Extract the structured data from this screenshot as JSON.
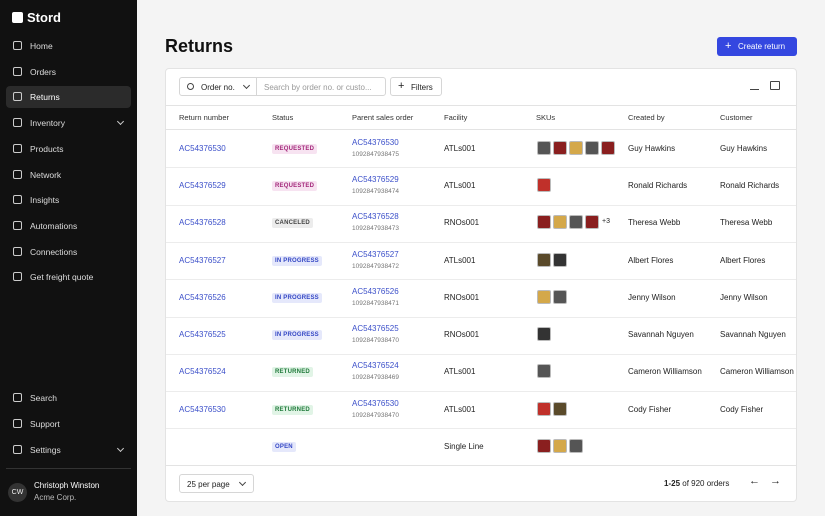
{
  "sidebar": {
    "brand": "Stord",
    "nav": [
      "Home",
      "Orders",
      "Returns",
      "Inventory",
      "Products",
      "Network",
      "Insights",
      "Automations",
      "Connections",
      "Get freight quote"
    ],
    "bottom_nav": [
      "Search",
      "Support",
      "Settings"
    ],
    "user": {
      "initials": "CW",
      "name": "Christoph Winston",
      "company": "Acme Corp."
    }
  },
  "header": {
    "title": "Returns",
    "action": "Create return"
  },
  "toolbar": {
    "filter_field": "Order no.",
    "search_placeholder": "Search by order no. or custo...",
    "filters": "Filters"
  },
  "table": {
    "columns": [
      "Return number",
      "Status",
      "Parent sales order",
      "Facility",
      "SKUs",
      "Created by",
      "Customer"
    ],
    "rows": [
      {
        "return_number": "AC54376530",
        "status": "REQUESTED",
        "status_color": "#a3277a",
        "status_bg": "#f7e3f1",
        "parent_order": "AC54376530",
        "parent_id": "1092847938475",
        "facility": "ATLs001",
        "created_by": "Guy Hawkins",
        "customer": "Guy Hawkins"
      },
      {
        "return_number": "AC54376529",
        "status": "REQUESTED",
        "status_color": "#a3277a",
        "status_bg": "#f7e3f1",
        "parent_order": "AC54376529",
        "parent_id": "1092847938474",
        "facility": "ATLs001",
        "created_by": "Ronald Richards",
        "customer": "Ronald Richards"
      },
      {
        "return_number": "AC54376528",
        "status": "CANCELED",
        "status_color": "#444444",
        "status_bg": "#ececec",
        "parent_order": "AC54376528",
        "parent_id": "1092847938473",
        "facility": "RNOs001",
        "more_skus": "+3",
        "created_by": "Theresa Webb",
        "customer": "Theresa Webb"
      },
      {
        "return_number": "AC54376527",
        "status": "IN PROGRESS",
        "status_color": "#3346c4",
        "status_bg": "#e5e8fb",
        "parent_order": "AC54376527",
        "parent_id": "1092847938472",
        "facility": "ATLs001",
        "created_by": "Albert Flores",
        "customer": "Albert Flores"
      },
      {
        "return_number": "AC54376526",
        "status": "IN PROGRESS",
        "status_color": "#3346c4",
        "status_bg": "#e5e8fb",
        "parent_order": "AC54376526",
        "parent_id": "1092847938471",
        "facility": "RNOs001",
        "created_by": "Jenny Wilson",
        "customer": "Jenny Wilson"
      },
      {
        "return_number": "AC54376525",
        "status": "IN PROGRESS",
        "status_color": "#3346c4",
        "status_bg": "#e5e8fb",
        "parent_order": "AC54376525",
        "parent_id": "1092847938470",
        "facility": "RNOs001",
        "created_by": "Savannah Nguyen",
        "customer": "Savannah Nguyen"
      },
      {
        "return_number": "AC54376524",
        "status": "RETURNED",
        "status_color": "#1f7a3a",
        "status_bg": "#e1f4e6",
        "parent_order": "AC54376524",
        "parent_id": "1092847938469",
        "facility": "ATLs001",
        "created_by": "Cameron Williamson",
        "customer": "Cameron Williamson"
      },
      {
        "return_number": "AC54376530",
        "status": "RETURNED",
        "status_color": "#1f7a3a",
        "status_bg": "#e1f4e6",
        "parent_order": "AC54376530",
        "parent_id": "1092847938470",
        "facility": "ATLs001",
        "created_by": "Cody Fisher",
        "customer": "Cody Fisher"
      },
      {
        "return_number": null,
        "status": "OPEN",
        "status_color": "#3346c4",
        "status_bg": "#e5e8fb",
        "parent_order": null,
        "parent_id": null,
        "facility": "Single Line",
        "created_by": null,
        "customer": null
      }
    ]
  },
  "footer": {
    "page_size": "25 per page",
    "range": "1-25",
    "total": "of 920 orders"
  }
}
